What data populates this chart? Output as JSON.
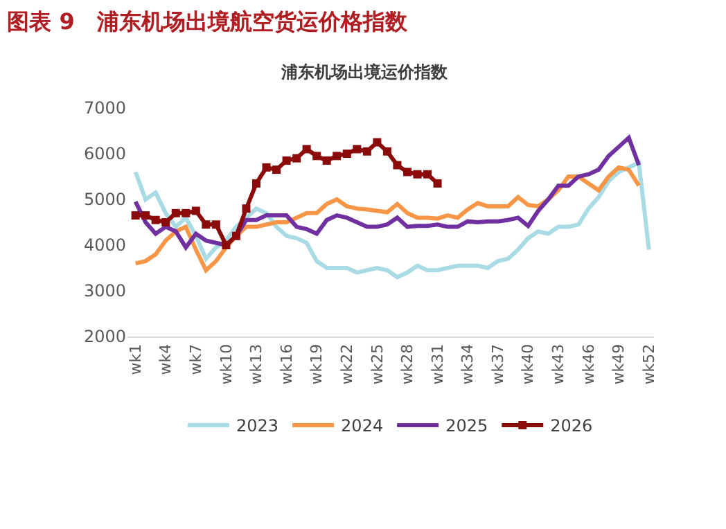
{
  "chart_data": {
    "type": "line",
    "title": "图表 9　浦东机场出境航空货运价格指数",
    "subtitle": "浦东机场出境运价指数",
    "categories": [
      "wk1",
      null,
      null,
      "wk4",
      null,
      null,
      "wk7",
      null,
      null,
      "wk10",
      null,
      null,
      "wk13",
      null,
      null,
      "wk16",
      null,
      null,
      "wk19",
      null,
      null,
      "wk22",
      null,
      null,
      "wk25",
      null,
      null,
      "wk28",
      null,
      null,
      "wk31",
      null,
      null,
      "wk34",
      null,
      null,
      "wk37",
      null,
      null,
      "wk40",
      null,
      null,
      "wk43",
      null,
      null,
      "wk46",
      null,
      null,
      "wk49",
      null,
      null,
      "wk52"
    ],
    "series": [
      {
        "name": "2023",
        "color": "#a9dbe5",
        "values": [
          5600,
          5000,
          5150,
          4700,
          4400,
          4600,
          4200,
          3700,
          3950,
          4100,
          4400,
          4600,
          4800,
          4700,
          4400,
          4200,
          4150,
          4050,
          3650,
          3500,
          3500,
          3500,
          3400,
          3450,
          3500,
          3450,
          3300,
          3400,
          3550,
          3450,
          3450,
          3500,
          3550,
          3550,
          3550,
          3500,
          3650,
          3700,
          3900,
          4150,
          4300,
          4250,
          4400,
          4400,
          4450,
          4800,
          5050,
          5400,
          5600,
          5700,
          5800,
          3900
        ]
      },
      {
        "name": "2024",
        "color": "#f79646",
        "values": [
          3600,
          3650,
          3800,
          4100,
          4300,
          4400,
          3900,
          3450,
          3650,
          3950,
          4200,
          4400,
          4400,
          4450,
          4500,
          4500,
          4600,
          4700,
          4700,
          4900,
          5000,
          4850,
          4800,
          4780,
          4750,
          4720,
          4900,
          4700,
          4600,
          4600,
          4580,
          4650,
          4600,
          4780,
          4920,
          4850,
          4850,
          4850,
          5050,
          4880,
          4850,
          5000,
          5200,
          5500,
          5500,
          5350,
          5200,
          5500,
          5700,
          5650,
          5300,
          null
        ]
      },
      {
        "name": "2025",
        "color": "#7030a0",
        "values": [
          4950,
          4500,
          4250,
          4400,
          4300,
          3950,
          4250,
          4100,
          4050,
          4000,
          4200,
          4550,
          4550,
          4650,
          4650,
          4650,
          4400,
          4350,
          4250,
          4550,
          4650,
          4600,
          4500,
          4400,
          4400,
          4450,
          4600,
          4400,
          4420,
          4420,
          4450,
          4400,
          4400,
          4520,
          4500,
          4520,
          4520,
          4550,
          4600,
          4420,
          4750,
          5000,
          5300,
          5300,
          5500,
          5550,
          5650,
          5950,
          6150,
          6350,
          5750,
          null
        ]
      },
      {
        "name": "2026",
        "color": "#8b0a0a",
        "marker": "square",
        "values": [
          4650,
          4650,
          4550,
          4500,
          4700,
          4700,
          4750,
          4450,
          4450,
          4000,
          4200,
          4800,
          5350,
          5700,
          5650,
          5850,
          5900,
          6100,
          5950,
          5850,
          5950,
          6000,
          6100,
          6050,
          6250,
          6050,
          5750,
          5600,
          5550,
          5550,
          5350,
          null,
          null,
          null,
          null,
          null,
          null,
          null,
          null,
          null,
          null,
          null,
          null,
          null,
          null,
          null,
          null,
          null,
          null,
          null,
          null,
          null
        ]
      }
    ],
    "ylim": [
      2000,
      7000
    ],
    "yticks": [
      2000,
      3000,
      4000,
      5000,
      6000,
      7000
    ],
    "grid": false,
    "legend": "bottom",
    "marker": "none",
    "line_style": "solid"
  }
}
